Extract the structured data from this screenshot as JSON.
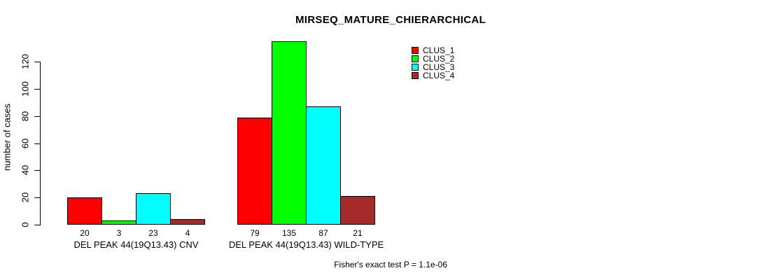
{
  "chart_data": {
    "type": "bar",
    "title": "MIRSEQ_MATURE_CHIERARCHICAL",
    "ylabel": "number of cases",
    "xlabel": "",
    "ylim": [
      0,
      135
    ],
    "yticks": [
      0,
      20,
      40,
      60,
      80,
      100,
      120
    ],
    "grid": false,
    "legend_position": "top-right",
    "categories": [
      "DEL PEAK 44(19Q13.43) CNV",
      "DEL PEAK 44(19Q13.43) WILD-TYPE"
    ],
    "series": [
      {
        "name": "CLUS_1",
        "color": "#ff0000",
        "values": [
          20,
          79
        ]
      },
      {
        "name": "CLUS_2",
        "color": "#00ff00",
        "values": [
          3,
          135
        ]
      },
      {
        "name": "CLUS_3",
        "color": "#00ffff",
        "values": [
          23,
          87
        ]
      },
      {
        "name": "CLUS_4",
        "color": "#a52a2a",
        "values": [
          4,
          21
        ]
      }
    ],
    "bar_value_labels": [
      [
        20,
        3,
        23,
        4
      ],
      [
        79,
        135,
        87,
        21
      ]
    ],
    "annotation": "Fisher's exact test P = 1.1e-06"
  },
  "colors": {
    "background": "#ffffff",
    "axis": "#000000",
    "text": "#000000",
    "bar_border": "#000000"
  }
}
